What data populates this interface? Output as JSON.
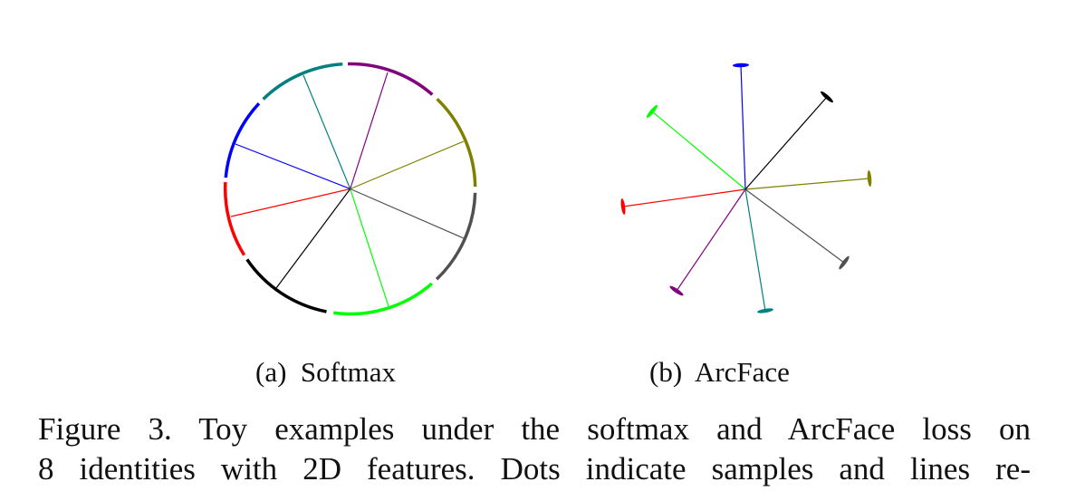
{
  "figure": {
    "subfigures": [
      {
        "label": "(a)",
        "name": "Softmax"
      },
      {
        "label": "(b)",
        "name": "ArcFace"
      }
    ],
    "identity_colors": [
      "#008080",
      "#800080",
      "#808000",
      "#505050",
      "#00ff00",
      "#000000",
      "#ff0000",
      "#0000ff"
    ],
    "caption_lines": [
      "Figure 3. Toy examples under the softmax and ArcFace loss on",
      "8 identities with 2D features. Dots indicate samples and lines re-"
    ]
  }
}
